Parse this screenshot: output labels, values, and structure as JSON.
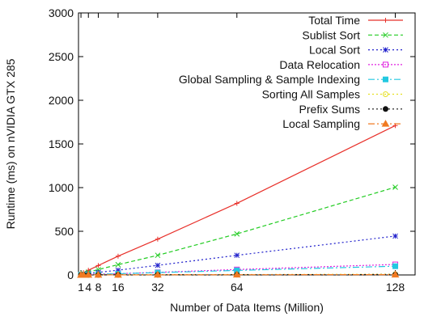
{
  "chart_data": {
    "type": "line",
    "xlabel": "Number of Data Items (Million)",
    "ylabel": "Runtime (ms) on nVIDIA GTX 285",
    "xlim": [
      0,
      136
    ],
    "ylim": [
      0,
      3000
    ],
    "xticks": [
      1,
      4,
      8,
      16,
      32,
      64,
      128
    ],
    "xtick_labels": [
      "1",
      "4",
      "8",
      "16",
      "32",
      "64",
      "128"
    ],
    "yticks": [
      0,
      500,
      1000,
      1500,
      2000,
      2500,
      3000
    ],
    "ytick_labels": [
      "0",
      "500",
      "1000",
      "1500",
      "2000",
      "2500",
      "3000"
    ],
    "grid": false,
    "legend_position": "top-right",
    "x": [
      1,
      2,
      4,
      8,
      16,
      32,
      64,
      128
    ],
    "series": [
      {
        "name": "Total Time",
        "color": "#e8302a",
        "marker": "plus",
        "dash": "",
        "values": [
          14,
          27,
          54,
          108,
          215,
          410,
          820,
          1710
        ]
      },
      {
        "name": "Sublist Sort",
        "color": "#22cc22",
        "marker": "x",
        "dash": "5,3",
        "values": [
          8,
          16,
          31,
          62,
          118,
          225,
          470,
          1005
        ]
      },
      {
        "name": "Local Sort",
        "color": "#2222cc",
        "marker": "star",
        "dash": "2,3",
        "values": [
          4,
          8,
          15,
          30,
          55,
          110,
          225,
          445
        ]
      },
      {
        "name": "Data Relocation",
        "color": "#e022e0",
        "marker": "square",
        "dash": "2,2",
        "values": [
          1,
          2,
          4,
          8,
          15,
          30,
          62,
          120
        ]
      },
      {
        "name": "Global Sampling & Sample Indexing",
        "color": "#22c8e0",
        "marker": "filled-square",
        "dash": "8,3,2,3",
        "values": [
          1,
          2,
          4,
          7,
          14,
          27,
          52,
          100
        ]
      },
      {
        "name": "Sorting All Samples",
        "color": "#e6e022",
        "marker": "circle",
        "dash": "2,3",
        "values": [
          1,
          1,
          1,
          2,
          2,
          3,
          5,
          8
        ]
      },
      {
        "name": "Prefix Sums",
        "color": "#111111",
        "marker": "filled-circle",
        "dash": "2,3",
        "values": [
          0,
          1,
          1,
          1,
          2,
          2,
          3,
          5
        ]
      },
      {
        "name": "Local Sampling",
        "color": "#f07a22",
        "marker": "triangle",
        "dash": "8,3,2,3",
        "values": [
          0,
          0,
          1,
          1,
          1,
          2,
          3,
          4
        ]
      }
    ]
  }
}
